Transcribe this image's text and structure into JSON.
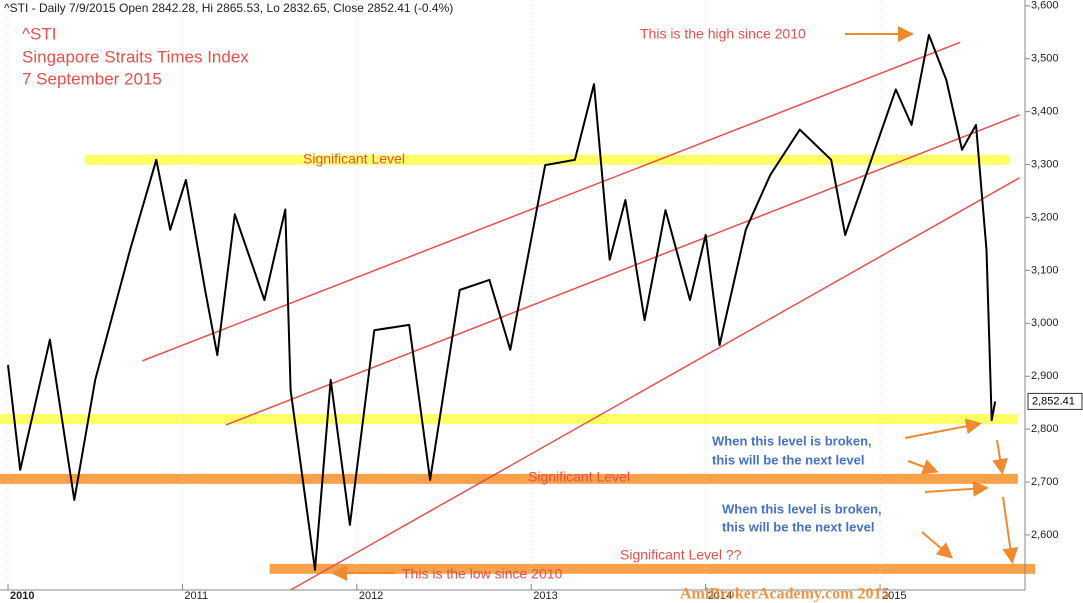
{
  "chart_data": {
    "type": "line",
    "subtitle": "^STI - Daily 7/9/2015 Open 2842.28, Hi 2865.53, Lo 2832.65, Close 2852.41 (-0.4%)",
    "title_lines": [
      "^STI",
      "Singapore Straits Times Index",
      "7 September 2015"
    ],
    "x": [
      2010.0,
      2010.07,
      2010.24,
      2010.38,
      2010.5,
      2010.7,
      2010.85,
      2010.93,
      2011.02,
      2011.13,
      2011.2,
      2011.3,
      2011.47,
      2011.59,
      2011.62,
      2011.76,
      2011.85,
      2011.96,
      2012.1,
      2012.3,
      2012.42,
      2012.59,
      2012.76,
      2012.88,
      2013.08,
      2013.25,
      2013.36,
      2013.45,
      2013.54,
      2013.65,
      2013.77,
      2013.91,
      2014.0,
      2014.08,
      2014.23,
      2014.37,
      2014.54,
      2014.72,
      2014.8,
      2014.95,
      2015.09,
      2015.18,
      2015.28,
      2015.38,
      2015.47,
      2015.55,
      2015.61,
      2015.64,
      2015.66
    ],
    "values": [
      2921,
      2723,
      2969,
      2666,
      2893,
      3139,
      3309,
      3177,
      3271,
      3063,
      2940,
      3206,
      3044,
      3215,
      2874,
      2534,
      2893,
      2619,
      2987,
      2997,
      2704,
      3063,
      3082,
      2950,
      3299,
      3309,
      3452,
      3120,
      3233,
      3006,
      3214,
      3044,
      3167,
      2959,
      3177,
      3280,
      3366,
      3309,
      3167,
      3309,
      3442,
      3375,
      3545,
      3460,
      3328,
      3375,
      3139,
      2817,
      2852.41
    ],
    "color": "#000000",
    "price_tag": {
      "value": 2852.41,
      "label": "2,852.41"
    },
    "xlim": [
      2009.954,
      2015.831
    ],
    "ylim": [
      2496,
      3611
    ],
    "xticks": [
      2010,
      2011,
      2012,
      2013,
      2014,
      2015
    ],
    "yticks": [
      {
        "value": 2600,
        "label": "2,600"
      },
      {
        "value": 2700,
        "label": "2,700"
      },
      {
        "value": 2800,
        "label": "2,800"
      },
      {
        "value": 2900,
        "label": "2,900"
      },
      {
        "value": 3000,
        "label": "3,000"
      },
      {
        "value": 3100,
        "label": "3,100"
      },
      {
        "value": 3200,
        "label": "3,200"
      },
      {
        "value": 3300,
        "label": "3,300"
      },
      {
        "value": 3400,
        "label": "3,400"
      },
      {
        "value": 3500,
        "label": "3,500"
      },
      {
        "value": 3600,
        "label": "3,600"
      }
    ],
    "levels": [
      {
        "value": 3309,
        "x": [
          2010.44,
          2015.74
        ],
        "color": "#ffff66"
      },
      {
        "value": 2819,
        "x": [
          2009.954,
          2015.79
        ],
        "color": "#ffff66"
      },
      {
        "value": 2706,
        "x": [
          2009.954,
          2015.79
        ],
        "color": "#f7a24b"
      },
      {
        "value": 2536,
        "x": [
          2011.5,
          2015.89
        ],
        "color": "#f7a24b"
      }
    ],
    "trend_lines": [
      {
        "x": [
          2010.77,
          2015.46
        ],
        "y": [
          2929,
          3531
        ],
        "color": "#e8504a"
      },
      {
        "x": [
          2011.25,
          2015.8
        ],
        "y": [
          2808,
          3394
        ],
        "color": "#e8504a"
      },
      {
        "x": [
          2011.62,
          2015.8
        ],
        "y": [
          2496,
          3275
        ],
        "color": "#e8504a"
      }
    ],
    "annotations": [
      "This is the high since 2010",
      "Significant Level",
      "Significant Level",
      "Significant Level ??",
      "This is the low since 2010",
      "When this level is broken,",
      "this will be the next level",
      "When this level is broken,",
      "this will be the next level"
    ],
    "watermark": "AmiBrokerAcademy.com 2015"
  }
}
